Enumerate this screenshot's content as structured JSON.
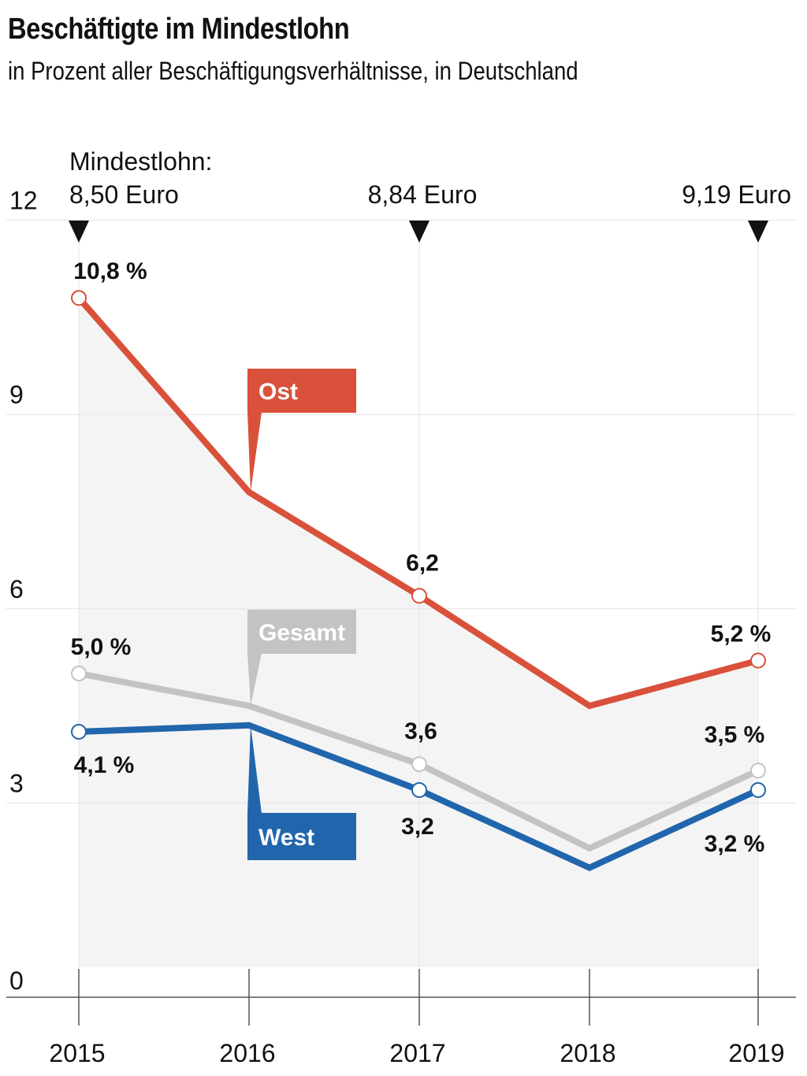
{
  "title": "Beschäftigte im Mindestlohn",
  "subtitle": "in Prozent aller Beschäftigungsverhältnisse, in Deutschland",
  "chart_data": {
    "type": "line",
    "x": [
      "2015",
      "2016",
      "2017",
      "2018",
      "2019"
    ],
    "ylim": [
      0,
      12
    ],
    "yticks": [
      "0",
      "3",
      "6",
      "9",
      "12"
    ],
    "grid": true,
    "series": [
      {
        "name": "Ost",
        "color": "#d9513a",
        "values": [
          10.8,
          7.8,
          6.2,
          4.5,
          5.2
        ]
      },
      {
        "name": "Gesamt",
        "color": "#c3c3c5",
        "values": [
          5.0,
          4.5,
          3.6,
          2.3,
          3.5
        ]
      },
      {
        "name": "West",
        "color": "#2166ac",
        "values": [
          4.1,
          4.2,
          3.2,
          2.0,
          3.2
        ]
      }
    ],
    "data_labels": [
      {
        "series": "Ost",
        "year": "2015",
        "text": "10,8 %"
      },
      {
        "series": "Ost",
        "year": "2017",
        "text": "6,2"
      },
      {
        "series": "Ost",
        "year": "2019",
        "text": "5,2 %"
      },
      {
        "series": "Gesamt",
        "year": "2015",
        "text": "5,0 %"
      },
      {
        "series": "Gesamt",
        "year": "2017",
        "text": "3,6"
      },
      {
        "series": "Gesamt",
        "year": "2019",
        "text": "3,5 %"
      },
      {
        "series": "West",
        "year": "2015",
        "text": "4,1 %"
      },
      {
        "series": "West",
        "year": "2017",
        "text": "3,2"
      },
      {
        "series": "West",
        "year": "2019",
        "text": "3,2 %"
      }
    ],
    "annotations": [
      {
        "year": "2015",
        "lines": [
          "Mindestlohn:",
          "8,50 Euro"
        ]
      },
      {
        "year": "2017",
        "lines": [
          "8,84 Euro"
        ]
      },
      {
        "year": "2019",
        "lines": [
          "9,19 Euro"
        ]
      }
    ],
    "area_fill": "#f4f4f4"
  }
}
